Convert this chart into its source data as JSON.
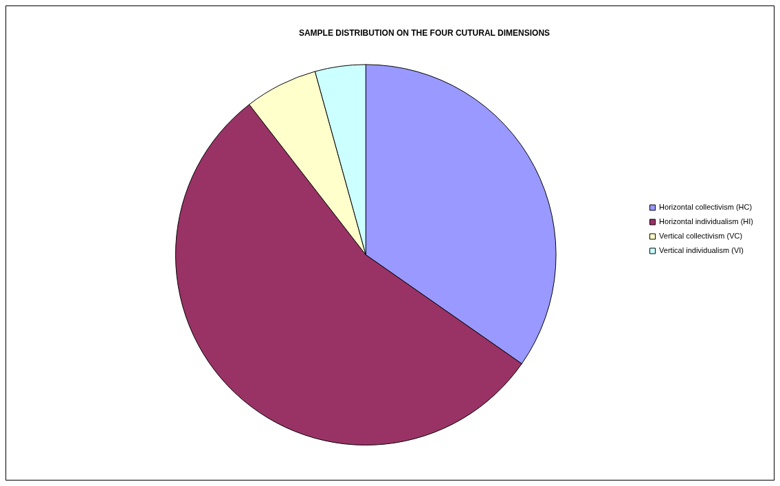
{
  "chart_data": {
    "type": "pie",
    "title": "SAMPLE DISTRIBUTION ON THE FOUR CUTURAL DIMENSIONS",
    "categories": [
      "Horizontal collectivism (HC)",
      "Horizontal individualism (HI)",
      "Vertical collectivism (VC)",
      "Vertical individualism (VI)"
    ],
    "values": [
      34.7,
      54.8,
      6.2,
      4.3
    ],
    "colors": [
      "#9999ff",
      "#993366",
      "#ffffcc",
      "#ccffff"
    ],
    "legend": "right"
  }
}
